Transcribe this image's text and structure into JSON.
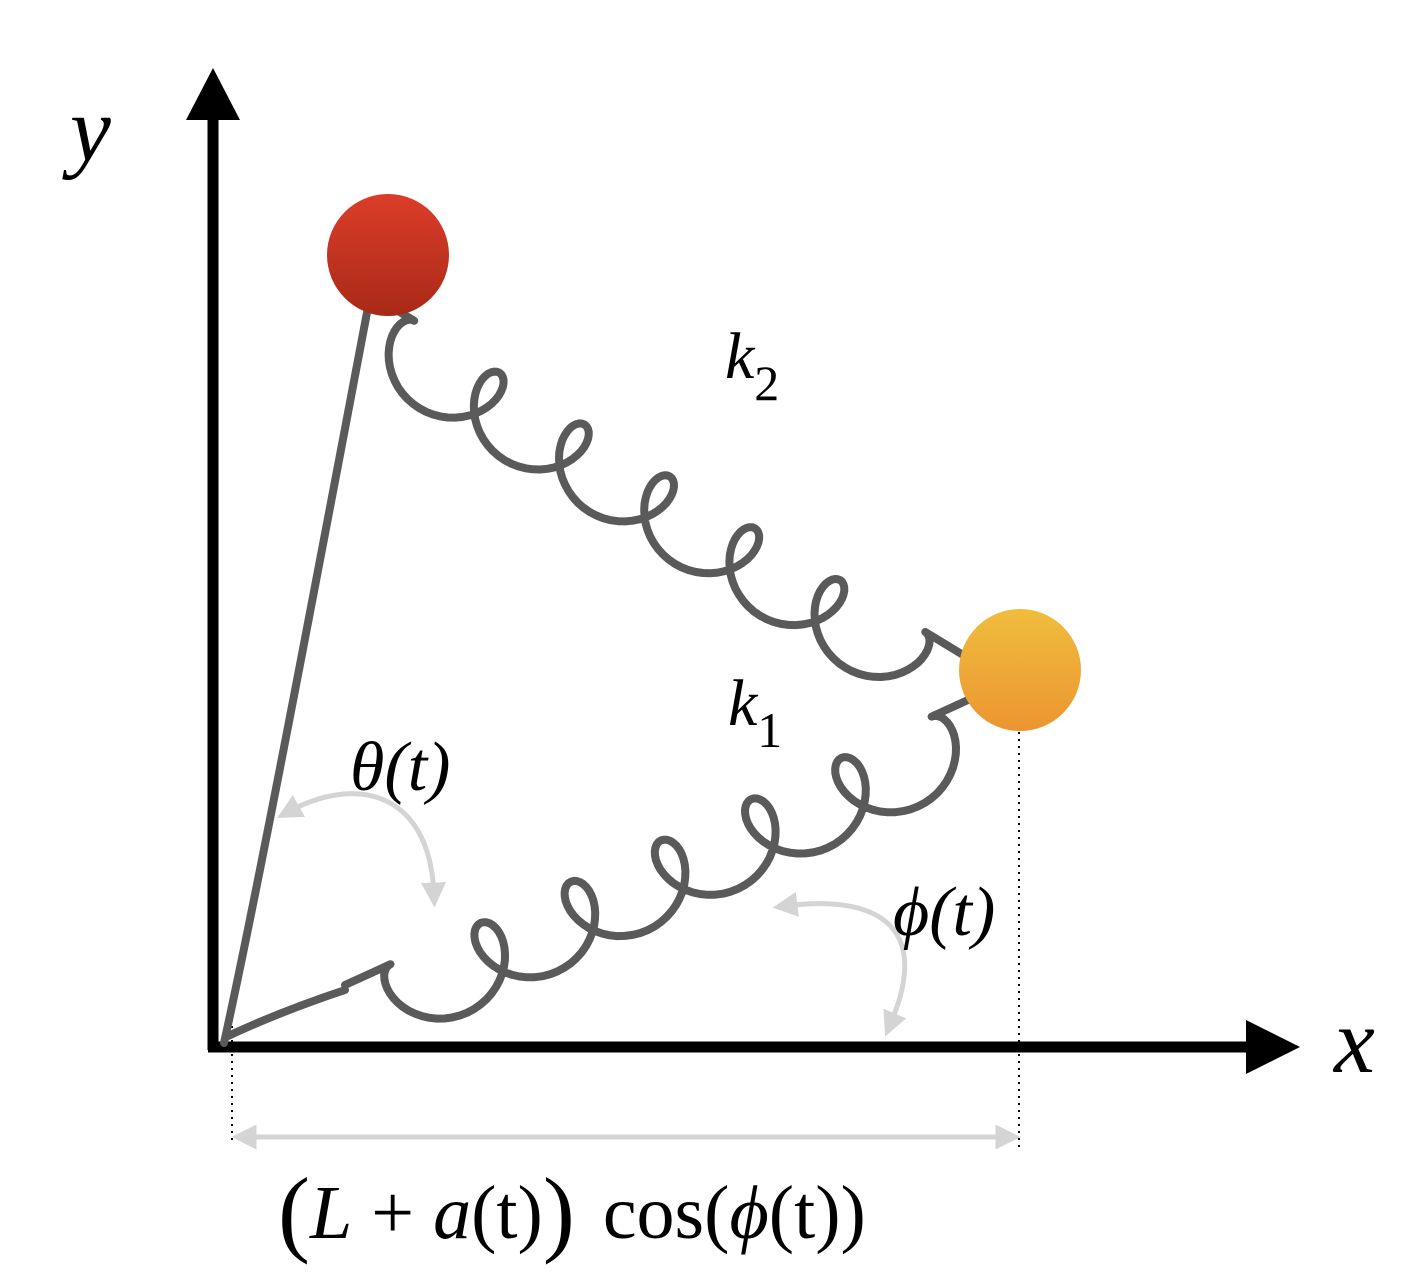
{
  "axes": {
    "x_label": "x",
    "y_label": "y"
  },
  "springs": {
    "upper_label": "k",
    "upper_subscript": "2",
    "lower_label": "k",
    "lower_subscript": "1"
  },
  "angles": {
    "theta_label": "θ(t)",
    "phi_label": "ϕ(t)"
  },
  "projection": {
    "formula_open": "(",
    "formula_L": "L",
    "formula_plus": " + ",
    "formula_a": "a",
    "formula_t": "(t)",
    "formula_close": ")",
    "formula_cos": "cos(",
    "formula_phi": "ϕ",
    "formula_end": "(t))"
  },
  "masses": {
    "upper_color": "#c33420",
    "lower_color": "#eea33a"
  },
  "colors": {
    "axis": "#000000",
    "spring": "#5a5a5a",
    "annotation_arrow": "#d4d4d4",
    "guide_line": "#000000"
  }
}
